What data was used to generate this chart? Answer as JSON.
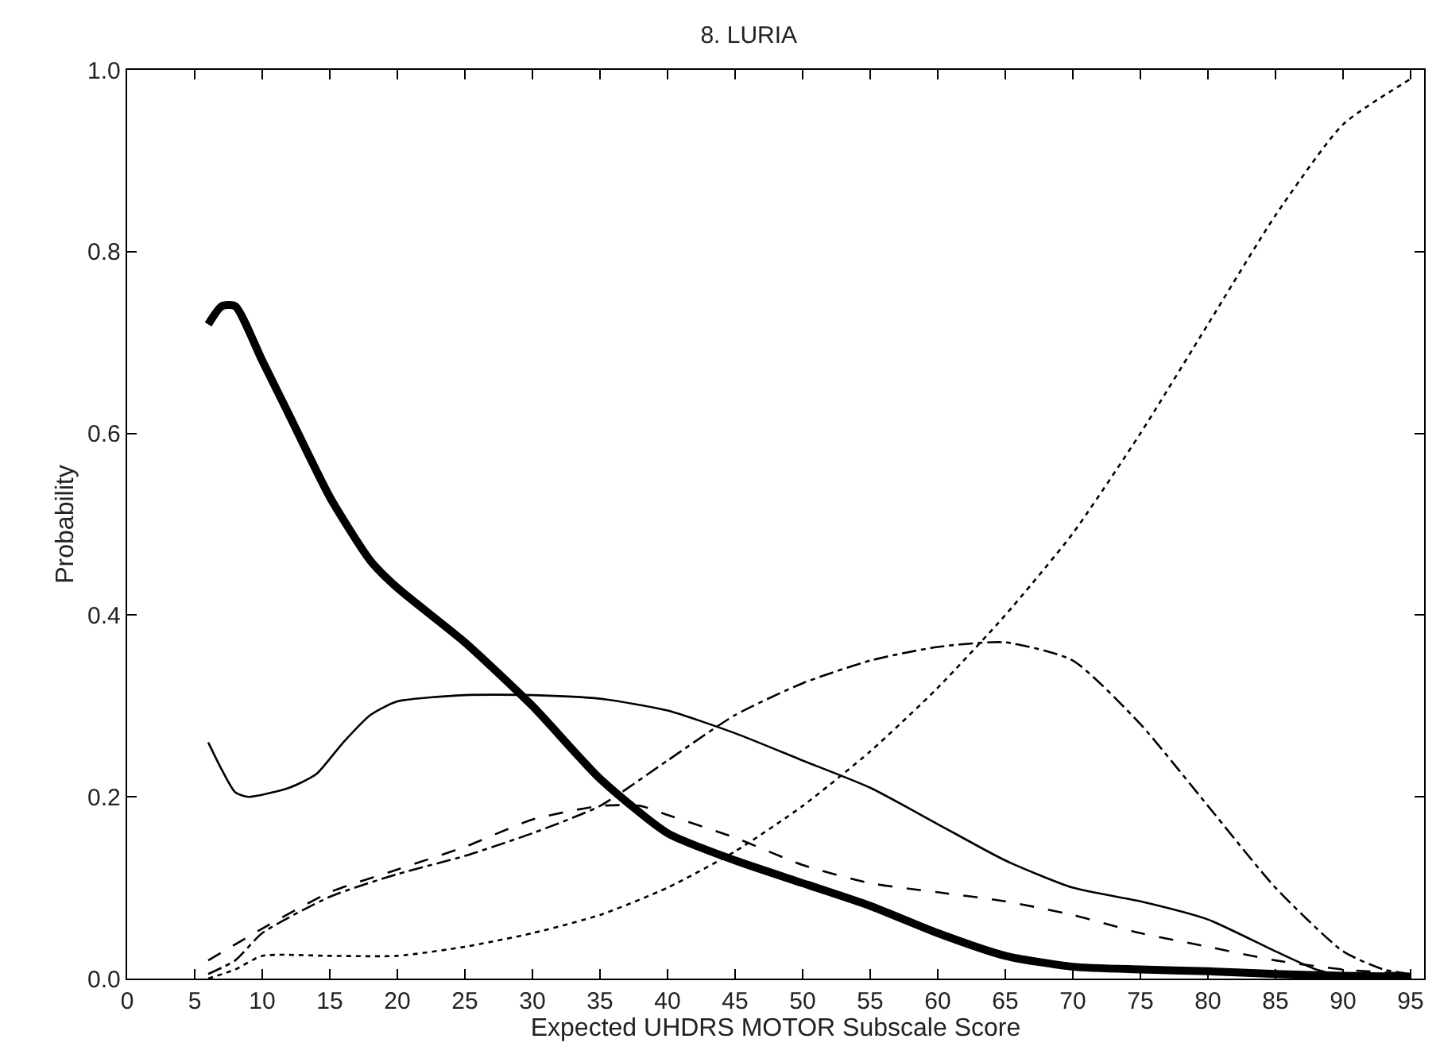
{
  "chart_data": {
    "type": "line",
    "title": "8. LURIA",
    "xlabel": "Expected UHDRS MOTOR Subscale Score",
    "ylabel": "Probability",
    "xlim": [
      0,
      96
    ],
    "xticks": [
      0,
      5,
      10,
      15,
      20,
      25,
      30,
      35,
      40,
      45,
      50,
      55,
      60,
      65,
      70,
      75,
      80,
      85,
      90,
      95
    ],
    "ylim": [
      0,
      1
    ],
    "yticks": [
      {
        "value": 0,
        "label": "0.0"
      },
      {
        "value": 0.2,
        "label": "0.2"
      },
      {
        "value": 0.4,
        "label": "0.4"
      },
      {
        "value": 0.6,
        "label": "0.6"
      },
      {
        "value": 0.8,
        "label": "0.8"
      },
      {
        "value": 1,
        "label": "1.0"
      }
    ],
    "marker": "none",
    "series": [
      {
        "color": "#000000",
        "line_style": "solid",
        "x": [
          6,
          7,
          8,
          10,
          12,
          15,
          18,
          20,
          25,
          30,
          35,
          40,
          45,
          50,
          55,
          60,
          65,
          70,
          75,
          80,
          85,
          90,
          95
        ],
        "values": [
          0.72,
          0.74,
          0.74,
          0.68,
          0.62,
          0.53,
          0.46,
          0.43,
          0.37,
          0.3,
          0.22,
          0.16,
          0.13,
          0.105,
          0.08,
          0.05,
          0.025,
          0.013,
          0.01,
          0.008,
          0.005,
          0.003,
          0.002
        ]
      },
      {
        "color": "#000000",
        "line_style": "solid",
        "x": [
          6,
          7,
          8,
          9,
          12,
          14,
          16,
          18,
          20,
          25,
          30,
          35,
          40,
          45,
          50,
          55,
          60,
          65,
          70,
          75,
          80,
          85,
          88,
          90,
          95
        ],
        "values": [
          0.26,
          0.23,
          0.205,
          0.2,
          0.21,
          0.225,
          0.26,
          0.29,
          0.305,
          0.312,
          0.312,
          0.308,
          0.295,
          0.27,
          0.24,
          0.21,
          0.17,
          0.13,
          0.1,
          0.085,
          0.065,
          0.03,
          0.01,
          0.003,
          0.001
        ]
      },
      {
        "color": "#000000",
        "line_style": "dashed",
        "x": [
          6,
          10,
          15,
          20,
          25,
          30,
          35,
          38,
          40,
          45,
          50,
          55,
          60,
          65,
          70,
          75,
          80,
          85,
          90,
          95
        ],
        "values": [
          0.02,
          0.055,
          0.095,
          0.12,
          0.145,
          0.175,
          0.19,
          0.19,
          0.18,
          0.155,
          0.125,
          0.105,
          0.095,
          0.085,
          0.07,
          0.05,
          0.035,
          0.02,
          0.01,
          0.005
        ]
      },
      {
        "color": "#000000",
        "line_style": "dashdot",
        "x": [
          6,
          8,
          10,
          15,
          20,
          25,
          30,
          35,
          40,
          45,
          50,
          55,
          60,
          65,
          70,
          75,
          80,
          85,
          90,
          93,
          95
        ],
        "values": [
          0.005,
          0.02,
          0.05,
          0.09,
          0.115,
          0.135,
          0.16,
          0.19,
          0.24,
          0.29,
          0.325,
          0.35,
          0.365,
          0.37,
          0.35,
          0.28,
          0.19,
          0.1,
          0.03,
          0.01,
          0.005
        ]
      },
      {
        "color": "#000000",
        "line_style": "dotted",
        "x": [
          6,
          8,
          10,
          15,
          20,
          25,
          30,
          35,
          40,
          45,
          50,
          55,
          60,
          65,
          70,
          75,
          80,
          85,
          90,
          95
        ],
        "values": [
          0.0,
          0.01,
          0.025,
          0.025,
          0.025,
          0.035,
          0.05,
          0.07,
          0.1,
          0.14,
          0.19,
          0.25,
          0.32,
          0.4,
          0.49,
          0.6,
          0.72,
          0.84,
          0.94,
          0.99
        ]
      }
    ]
  }
}
